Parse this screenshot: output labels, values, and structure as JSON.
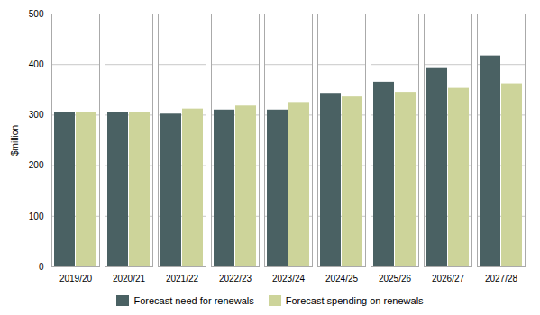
{
  "chart_data": {
    "type": "bar",
    "categories": [
      "2019/20",
      "2020/21",
      "2021/22",
      "2022/23",
      "2023/24",
      "2024/25",
      "2025/26",
      "2026/27",
      "2027/28"
    ],
    "series": [
      {
        "name": "Forecast need for renewals",
        "color": "#4a6163",
        "values": [
          305,
          305,
          302,
          310,
          310,
          343,
          365,
          392,
          417
        ]
      },
      {
        "name": "Forecast spending on renewals",
        "color": "#cdd49a",
        "values": [
          305,
          305,
          312,
          318,
          325,
          336,
          345,
          353,
          362
        ]
      }
    ],
    "ylabel": "$million",
    "ylim": [
      0,
      500
    ],
    "yticks": [
      0,
      100,
      200,
      300,
      400,
      500
    ],
    "grid": true,
    "legend": "bottom"
  }
}
